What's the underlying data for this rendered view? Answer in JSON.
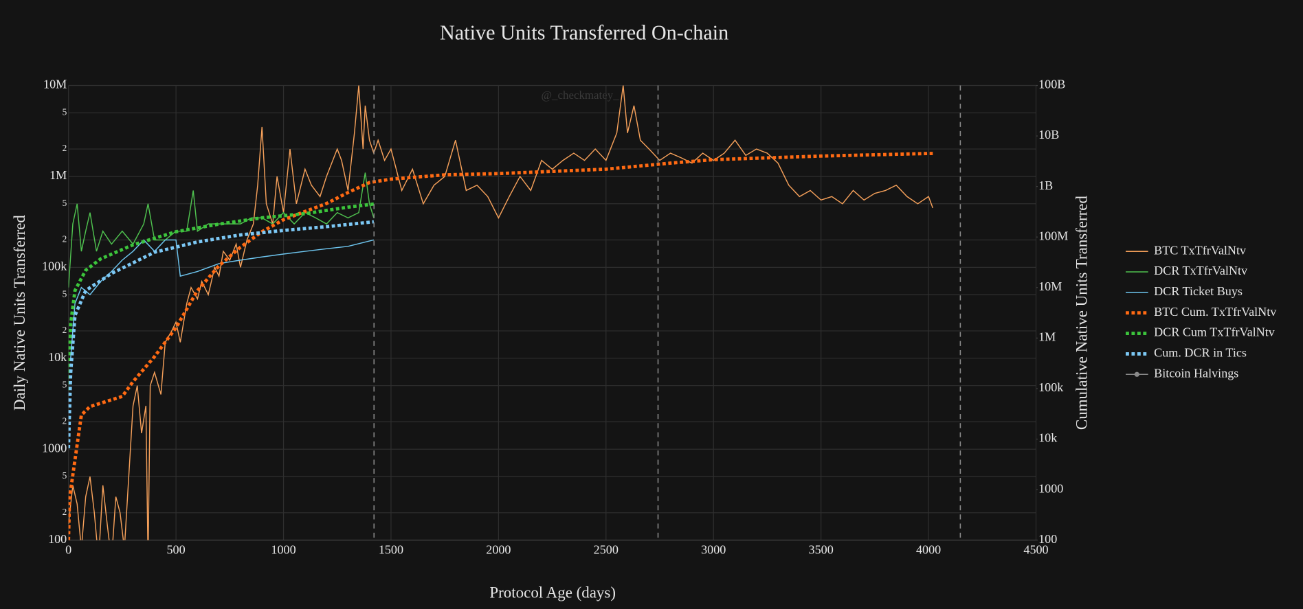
{
  "chart_data": {
    "type": "line",
    "title": "Native Units Transferred On-chain",
    "watermark": "@_checkmatey_",
    "xlabel": "Protocol Age (days)",
    "ylabel": "Daily Native Units Transferred",
    "y2label": "Cumulative Native Units Transferred",
    "log_y": true,
    "log_y2": true,
    "grid": true,
    "legend": "right",
    "xlim": [
      0,
      4500
    ],
    "xticks": [
      0,
      500,
      1000,
      1500,
      2000,
      2500,
      3000,
      3500,
      4000,
      4500
    ],
    "ylim": [
      100,
      10000000
    ],
    "yticks": [
      100,
      {
        "value": 200,
        "label": "2"
      },
      {
        "value": 500,
        "label": "5"
      },
      1000,
      {
        "value": 2000,
        "label": "2"
      },
      {
        "value": 5000,
        "label": "5"
      },
      {
        "value": 10000,
        "label": "10k"
      },
      {
        "value": 20000,
        "label": "2"
      },
      {
        "value": 50000,
        "label": "5"
      },
      {
        "value": 100000,
        "label": "100k"
      },
      {
        "value": 200000,
        "label": "2"
      },
      {
        "value": 500000,
        "label": "5"
      },
      {
        "value": 1000000,
        "label": "1M"
      },
      {
        "value": 2000000,
        "label": "2"
      },
      {
        "value": 5000000,
        "label": "5"
      },
      {
        "value": 10000000,
        "label": "10M"
      }
    ],
    "y2lim": [
      100,
      100000000000
    ],
    "y2ticks": [
      100,
      1000,
      {
        "value": 10000,
        "label": "10k"
      },
      {
        "value": 100000,
        "label": "100k"
      },
      {
        "value": 1000000,
        "label": "1M"
      },
      {
        "value": 10000000,
        "label": "10M"
      },
      {
        "value": 100000000,
        "label": "100M"
      },
      {
        "value": 1000000000,
        "label": "1B"
      },
      {
        "value": 10000000000,
        "label": "10B"
      },
      {
        "value": 100000000000,
        "label": "100B"
      }
    ],
    "series": [
      {
        "name": "BTC TxTfrValNtv",
        "color": "#f5a05a",
        "axis": "y",
        "x": [
          0,
          20,
          40,
          60,
          80,
          100,
          120,
          140,
          160,
          180,
          200,
          220,
          240,
          260,
          300,
          320,
          340,
          360,
          370,
          380,
          400,
          430,
          450,
          480,
          500,
          520,
          550,
          570,
          600,
          620,
          650,
          680,
          700,
          720,
          750,
          780,
          800,
          830,
          860,
          880,
          900,
          920,
          950,
          970,
          1000,
          1030,
          1060,
          1100,
          1130,
          1170,
          1200,
          1250,
          1270,
          1300,
          1330,
          1350,
          1370,
          1380,
          1400,
          1420,
          1440,
          1470,
          1500,
          1550,
          1600,
          1650,
          1700,
          1750,
          1800,
          1850,
          1900,
          1950,
          2000,
          2050,
          2100,
          2150,
          2200,
          2250,
          2300,
          2350,
          2400,
          2450,
          2500,
          2550,
          2580,
          2600,
          2630,
          2660,
          2700,
          2750,
          2800,
          2850,
          2900,
          2950,
          3000,
          3050,
          3100,
          3150,
          3200,
          3250,
          3300,
          3350,
          3400,
          3450,
          3500,
          3550,
          3600,
          3650,
          3700,
          3750,
          3800,
          3850,
          3900,
          3950,
          4000,
          4020
        ],
        "values": [
          150,
          400,
          250,
          80,
          300,
          500,
          200,
          60,
          400,
          150,
          60,
          300,
          200,
          80,
          3000,
          5000,
          1500,
          3000,
          60,
          5000,
          7000,
          4000,
          15000,
          20000,
          25000,
          15000,
          40000,
          60000,
          45000,
          70000,
          50000,
          100000,
          80000,
          150000,
          120000,
          180000,
          100000,
          200000,
          300000,
          800000,
          3500000,
          500000,
          300000,
          1000000,
          400000,
          2000000,
          500000,
          1200000,
          800000,
          600000,
          1000000,
          2000000,
          1500000,
          700000,
          3000000,
          10000000,
          2000000,
          6000000,
          2500000,
          1800000,
          2500000,
          1500000,
          2000000,
          700000,
          1200000,
          500000,
          800000,
          1000000,
          2500000,
          700000,
          800000,
          600000,
          350000,
          600000,
          1000000,
          700000,
          1500000,
          1200000,
          1500000,
          1800000,
          1500000,
          2000000,
          1500000,
          3000000,
          10000000,
          3000000,
          6000000,
          2500000,
          2000000,
          1500000,
          1800000,
          1600000,
          1400000,
          1800000,
          1500000,
          1800000,
          2500000,
          1700000,
          2000000,
          1800000,
          1400000,
          800000,
          600000,
          700000,
          550000,
          600000,
          500000,
          700000,
          550000,
          650000,
          700000,
          800000,
          600000,
          500000,
          600000,
          450000
        ]
      },
      {
        "name": "DCR TxTfrValNtv",
        "color": "#4fc24f",
        "axis": "y",
        "x": [
          0,
          20,
          40,
          60,
          80,
          100,
          130,
          160,
          200,
          250,
          300,
          350,
          370,
          400,
          450,
          500,
          550,
          580,
          600,
          650,
          700,
          750,
          800,
          850,
          900,
          950,
          1000,
          1050,
          1100,
          1150,
          1200,
          1250,
          1300,
          1350,
          1380,
          1400,
          1420
        ],
        "values": [
          60000,
          300000,
          500000,
          150000,
          250000,
          400000,
          150000,
          250000,
          180000,
          250000,
          180000,
          300000,
          500000,
          200000,
          200000,
          250000,
          250000,
          700000,
          250000,
          300000,
          300000,
          300000,
          300000,
          350000,
          350000,
          300000,
          400000,
          300000,
          400000,
          350000,
          300000,
          400000,
          350000,
          400000,
          1100000,
          500000,
          350000
        ]
      },
      {
        "name": "DCR Ticket Buys",
        "color": "#6ec6f0",
        "axis": "y",
        "x": [
          10,
          30,
          60,
          100,
          150,
          200,
          250,
          300,
          350,
          400,
          450,
          500,
          520,
          600,
          700,
          800,
          900,
          1000,
          1100,
          1200,
          1300,
          1420
        ],
        "values": [
          10000,
          40000,
          60000,
          50000,
          70000,
          90000,
          120000,
          150000,
          200000,
          150000,
          200000,
          200000,
          80000,
          90000,
          110000,
          120000,
          130000,
          140000,
          150000,
          160000,
          170000,
          200000
        ]
      },
      {
        "name": "BTC Cum. TxTfrValNtv",
        "color": "#ff6a13",
        "axis": "y2",
        "dash": true,
        "x": [
          0,
          5,
          60,
          100,
          250,
          300,
          400,
          500,
          600,
          700,
          800,
          900,
          1000,
          1100,
          1200,
          1300,
          1400,
          1500,
          1750,
          2000,
          2500,
          2800,
          3000,
          3500,
          4000,
          4020
        ],
        "values": [
          100,
          690,
          30000,
          44000,
          70000,
          137000,
          430000,
          1600000,
          8700000,
          27000000,
          63000000,
          127000000,
          220000000,
          320000000,
          460000000,
          760000000,
          1200000000,
          1400000000,
          1700000000,
          1800000000,
          2200000000,
          2900000000,
          3400000000,
          4000000000,
          4500000000,
          4500000000
        ]
      },
      {
        "name": "DCR Cum TxTfrValNtv",
        "color": "#3cc43c",
        "axis": "y2",
        "dash": true,
        "x": [
          0,
          10,
          30,
          80,
          150,
          300,
          500,
          700,
          900,
          1100,
          1300,
          1420
        ],
        "values": [
          93000,
          1900000,
          8700000,
          22000000,
          37000000,
          70000000,
          127000000,
          180000000,
          240000000,
          290000000,
          390000000,
          450000000
        ]
      },
      {
        "name": "Cum. DCR in Tics",
        "color": "#7cc8f5",
        "axis": "y2",
        "dash": true,
        "x": [
          0,
          10,
          30,
          80,
          200,
          400,
          600,
          800,
          1000,
          1200,
          1420
        ],
        "values": [
          6600,
          200000,
          2800000,
          8700000,
          19000000,
          50000000,
          80000000,
          110000000,
          135000000,
          160000000,
          200000000
        ]
      },
      {
        "name": "Bitcoin Halvings",
        "color": "#8a8a8a",
        "type": "vline",
        "x": [
          1421,
          2742,
          4148
        ]
      }
    ]
  }
}
